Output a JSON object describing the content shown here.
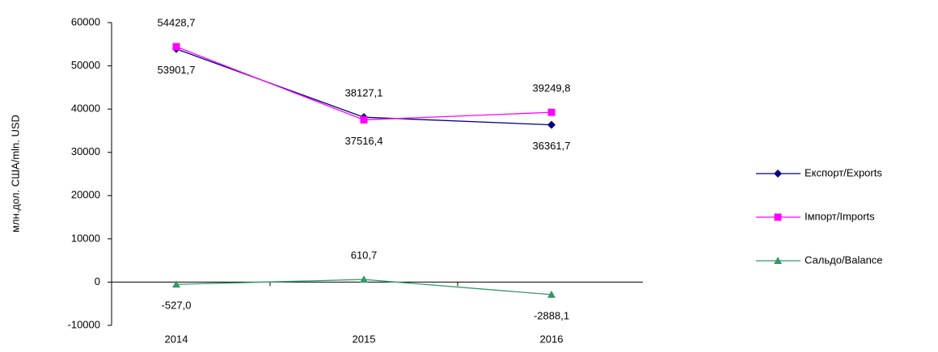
{
  "chart_data": {
    "type": "line",
    "y_axis_label": "млн.дол. США/mln. USD",
    "categories": [
      "2014",
      "2015",
      "2016"
    ],
    "series": [
      {
        "name": "Експорт/Exports",
        "color": "#000080",
        "marker": "diamond",
        "values": [
          53901.7,
          38127.1,
          36361.7
        ],
        "value_labels": [
          "53901,7",
          "38127,1",
          "36361,7"
        ]
      },
      {
        "name": "Імпорт/Imports",
        "color": "#ff00ff",
        "marker": "square",
        "values": [
          54428.7,
          37516.4,
          39249.8
        ],
        "value_labels": [
          "54428,7",
          "37516,4",
          "39249,8"
        ]
      },
      {
        "name": "Сальдо/Balance",
        "color": "#339966",
        "marker": "triangle",
        "values": [
          -527.0,
          610.7,
          -2888.1
        ],
        "value_labels": [
          "-527,0",
          "610,7",
          "-2888,1"
        ]
      }
    ],
    "ylim": [
      -10000,
      60000
    ],
    "yticks": [
      -10000,
      0,
      10000,
      20000,
      30000,
      40000,
      50000,
      60000
    ],
    "grid": false
  }
}
